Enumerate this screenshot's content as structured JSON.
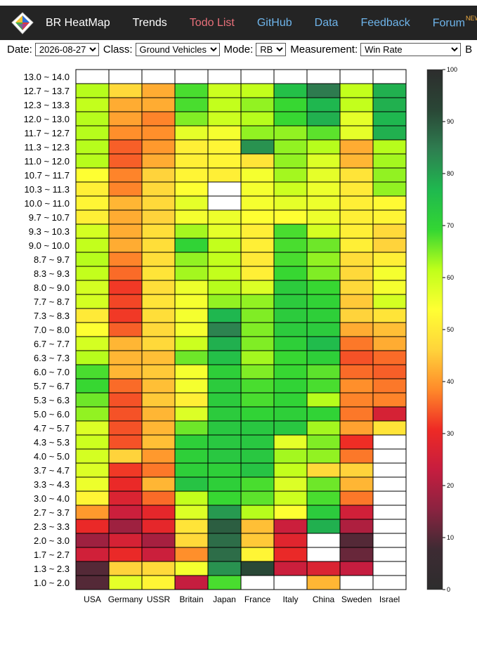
{
  "nav": {
    "brand": "BR HeatMap",
    "links": [
      {
        "label": "Trends",
        "color": "#ffffff",
        "badge": ""
      },
      {
        "label": "Todo List",
        "color": "#e8707a",
        "badge": ""
      },
      {
        "label": "GitHub",
        "color": "#6eb4ea",
        "badge": ""
      },
      {
        "label": "Data",
        "color": "#6eb4ea",
        "badge": ""
      },
      {
        "label": "Feedback",
        "color": "#6eb4ea",
        "badge": ""
      },
      {
        "label": "Forum",
        "color": "#6eb4ea",
        "badge": "NEW"
      }
    ]
  },
  "controls": {
    "date_label": "Date:",
    "date_value": "2026-08-27",
    "class_label": "Class:",
    "class_value": "Ground Vehicles",
    "mode_label": "Mode:",
    "mode_value": "RB",
    "measurement_label": "Measurement:",
    "measurement_value": "Win Rate",
    "trailing_label": "B"
  },
  "chart_data": {
    "type": "heatmap",
    "title": "",
    "xlabel": "",
    "ylabel": "",
    "x": [
      "USA",
      "Germany",
      "USSR",
      "Britain",
      "Japan",
      "France",
      "Italy",
      "China",
      "Sweden",
      "Israel"
    ],
    "y": [
      "13.0 ~ 14.0",
      "12.7 ~ 13.7",
      "12.3 ~ 13.3",
      "12.0 ~ 13.0",
      "11.7 ~ 12.7",
      "11.3 ~ 12.3",
      "11.0 ~ 12.0",
      "10.7 ~ 11.7",
      "10.3 ~ 11.3",
      "10.0 ~ 11.0",
      "9.7 ~ 10.7",
      "9.3 ~ 10.3",
      "9.0 ~ 10.0",
      "8.7 ~ 9.7",
      "8.3 ~ 9.3",
      "8.0 ~ 9.0",
      "7.7 ~ 8.7",
      "7.3 ~ 8.3",
      "7.0 ~ 8.0",
      "6.7 ~ 7.7",
      "6.3 ~ 7.3",
      "6.0 ~ 7.0",
      "5.7 ~ 6.7",
      "5.3 ~ 6.3",
      "5.0 ~ 6.0",
      "4.7 ~ 5.7",
      "4.3 ~ 5.3",
      "4.0 ~ 5.0",
      "3.7 ~ 4.7",
      "3.3 ~ 4.3",
      "3.0 ~ 4.0",
      "2.7 ~ 3.7",
      "2.3 ~ 3.3",
      "2.0 ~ 3.0",
      "1.7 ~ 2.7",
      "1.3 ~ 2.3",
      "1.0 ~ 2.0"
    ],
    "values": [
      [
        null,
        null,
        null,
        null,
        null,
        null,
        null,
        null,
        null,
        null
      ],
      [
        62,
        47,
        42,
        68,
        60,
        61,
        75,
        85,
        61,
        78
      ],
      [
        61,
        42,
        42,
        68,
        61,
        64,
        69,
        77,
        61,
        78
      ],
      [
        62,
        41,
        38,
        65,
        60,
        62,
        69,
        78,
        57,
        77
      ],
      [
        62,
        39,
        39,
        57,
        55,
        64,
        64,
        67,
        57,
        78
      ],
      [
        62,
        35,
        40,
        51,
        52,
        82,
        64,
        62,
        42,
        62
      ],
      [
        62,
        35,
        42,
        51,
        52,
        49,
        64,
        58,
        43,
        63
      ],
      [
        54,
        38,
        46,
        52,
        51,
        55,
        63,
        57,
        49,
        64
      ],
      [
        51,
        38,
        47,
        54,
        null,
        55,
        60,
        56,
        50,
        64
      ],
      [
        52,
        43,
        47,
        57,
        null,
        55,
        57,
        56,
        51,
        53
      ],
      [
        51,
        42,
        46,
        55,
        56,
        54,
        54,
        56,
        51,
        52
      ],
      [
        59,
        42,
        48,
        63,
        57,
        51,
        68,
        59,
        51,
        47
      ],
      [
        61,
        42,
        48,
        70,
        61,
        51,
        68,
        66,
        51,
        46
      ],
      [
        62,
        38,
        48,
        64,
        61,
        50,
        68,
        64,
        48,
        51
      ],
      [
        61,
        36,
        49,
        63,
        61,
        51,
        69,
        65,
        47,
        55
      ],
      [
        59,
        32,
        48,
        56,
        62,
        58,
        72,
        69,
        47,
        55
      ],
      [
        59,
        33,
        49,
        55,
        64,
        64,
        72,
        70,
        45,
        59
      ],
      [
        50,
        32,
        48,
        55,
        77,
        65,
        72,
        71,
        46,
        49
      ],
      [
        54,
        35,
        47,
        55,
        84,
        65,
        72,
        72,
        42,
        44
      ],
      [
        59,
        43,
        47,
        60,
        78,
        65,
        71,
        76,
        37,
        42
      ],
      [
        62,
        43,
        44,
        66,
        75,
        63,
        69,
        71,
        34,
        36
      ],
      [
        68,
        43,
        45,
        55,
        71,
        65,
        69,
        67,
        36,
        35
      ],
      [
        69,
        36,
        44,
        55,
        72,
        68,
        70,
        68,
        39,
        37
      ],
      [
        66,
        34,
        45,
        51,
        72,
        68,
        70,
        62,
        38,
        38
      ],
      [
        64,
        34,
        43,
        58,
        72,
        70,
        71,
        70,
        37,
        26
      ],
      [
        58,
        34,
        43,
        66,
        73,
        73,
        73,
        63,
        41,
        49
      ],
      [
        60,
        34,
        44,
        71,
        73,
        73,
        57,
        65,
        31,
        null
      ],
      [
        59,
        46,
        40,
        71,
        73,
        73,
        63,
        64,
        37,
        null
      ],
      [
        58,
        32,
        37,
        71,
        71,
        74,
        61,
        47,
        46,
        null
      ],
      [
        56,
        30,
        43,
        74,
        71,
        68,
        58,
        66,
        43,
        null
      ],
      [
        52,
        27,
        36,
        61,
        69,
        67,
        60,
        68,
        37,
        null
      ],
      [
        40,
        24,
        29,
        58,
        81,
        62,
        54,
        72,
        25,
        null
      ],
      [
        30,
        18,
        29,
        49,
        89,
        44,
        24,
        78,
        20,
        null
      ],
      [
        18,
        26,
        19,
        47,
        87,
        45,
        28,
        null,
        10,
        null
      ],
      [
        25,
        30,
        24,
        39,
        87,
        52,
        30,
        null,
        12,
        null
      ],
      [
        10,
        46,
        47,
        55,
        82,
        92,
        24,
        27,
        23,
        null
      ],
      [
        10,
        57,
        52,
        23,
        68,
        null,
        null,
        43,
        null,
        null
      ]
    ],
    "colorbar": {
      "min": 0,
      "max": 100,
      "ticks": [
        0,
        10,
        20,
        30,
        40,
        50,
        60,
        70,
        80,
        90,
        100
      ]
    },
    "colorscale": [
      "#2d2d2d",
      "#3d2b33",
      "#8a2340",
      "#c61d3f",
      "#ee2a25",
      "#ff8a2a",
      "#ffd43b",
      "#ffff33",
      "#bfff1a",
      "#33d633",
      "#1fb84f",
      "#2e7e50",
      "#2a4636",
      "#2d2d2d"
    ]
  }
}
